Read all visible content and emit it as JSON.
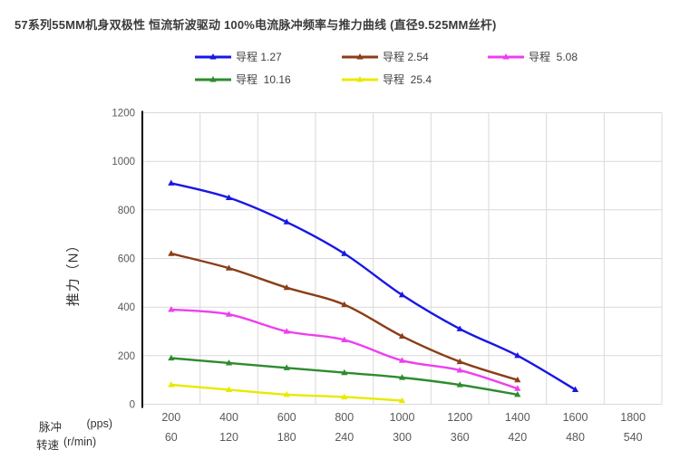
{
  "title": "57系列55MM机身双极性 恒流斩波驱动 100%电流脉冲频率与推力曲线 (直径9.525MM丝杆)",
  "y_axis": {
    "label": "推力（N）",
    "tick_labels": [
      "0",
      "200",
      "400",
      "600",
      "800",
      "1000",
      "1200"
    ]
  },
  "x_axis": {
    "row1_header_cn": "脉冲",
    "row1_header_unit": "(pps)",
    "row2_header_cn": "转速",
    "row2_header_unit": "(r/min)",
    "row1_ticks": [
      "200",
      "400",
      "600",
      "800",
      "1000",
      "1200",
      "1400",
      "1600",
      "1800"
    ],
    "row2_ticks": [
      "60",
      "120",
      "180",
      "240",
      "300",
      "360",
      "420",
      "480",
      "540"
    ]
  },
  "colors": {
    "gridline": "#d9d9d9",
    "axis": "#000000",
    "tick_text": "#595959"
  },
  "chart_data": {
    "type": "line",
    "title": "57系列55MM机身双极性 恒流斩波驱动 100%电流脉冲频率与推力曲线 (直径9.525MM丝杆)",
    "xlabel_row1": "脉冲 (pps)",
    "xlabel_row2": "转速 (r/min)",
    "ylabel": "推力（N）",
    "x_pps": [
      200,
      400,
      600,
      800,
      1000,
      1200,
      1400,
      1600,
      1800
    ],
    "x_rpm": [
      60,
      120,
      180,
      240,
      300,
      360,
      420,
      480,
      540
    ],
    "ylim": [
      0,
      1200
    ],
    "yticks": [
      0,
      200,
      400,
      600,
      800,
      1000,
      1200
    ],
    "grid": true,
    "legend_position": "top",
    "marker": "triangle",
    "smooth": true,
    "series": [
      {
        "name": "导程 1.27",
        "color": "#1717e6",
        "values": [
          910,
          850,
          750,
          620,
          450,
          310,
          200,
          60,
          null
        ]
      },
      {
        "name": "导程 2.54",
        "color": "#8b3e17",
        "values": [
          620,
          560,
          480,
          410,
          280,
          175,
          100,
          null,
          null
        ]
      },
      {
        "name": "导程  5.08",
        "color": "#ee3fee",
        "values": [
          390,
          370,
          300,
          265,
          180,
          140,
          65,
          null,
          null
        ]
      },
      {
        "name": "导程  10.16",
        "color": "#2e8b2e",
        "values": [
          190,
          170,
          150,
          130,
          110,
          80,
          40,
          null,
          null
        ]
      },
      {
        "name": "导程  25.4",
        "color": "#e9e900",
        "values": [
          80,
          60,
          40,
          30,
          15,
          null,
          null,
          null,
          null
        ]
      }
    ]
  }
}
